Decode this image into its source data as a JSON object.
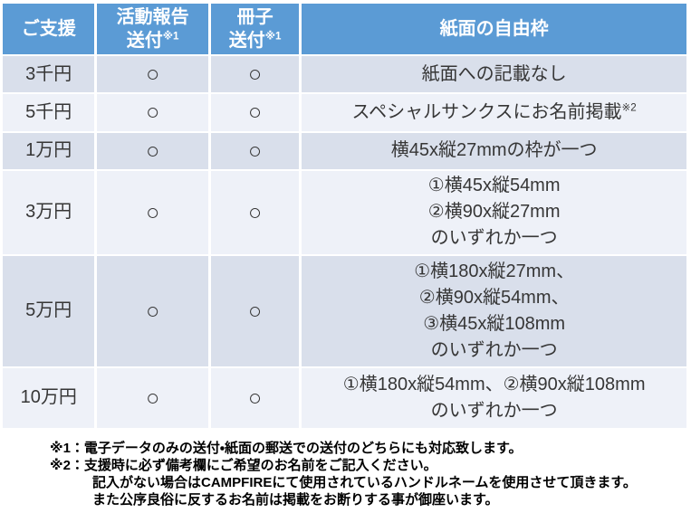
{
  "colors": {
    "header-bg": "#5B9BD5",
    "header-text": "#FFFFFF",
    "band-dark": "#D9DFEB",
    "band-light": "#EEF1F8",
    "cell-text": "#363636",
    "note-text": "#000000",
    "page-bg": "#FFFFFF"
  },
  "table": {
    "header": {
      "support": {
        "text": "ご支援"
      },
      "activity_report": {
        "text": "活動報告\n送付",
        "sup": "※1"
      },
      "booklet": {
        "text": "冊子\n送付",
        "sup": "※1"
      },
      "free_space": {
        "text": "紙面の自由枠"
      }
    },
    "rows": [
      {
        "tier": "3千円",
        "report": "○",
        "booklet": "○",
        "space": {
          "text": "紙面への記載なし"
        }
      },
      {
        "tier": "5千円",
        "report": "○",
        "booklet": "○",
        "space": {
          "text": "スペシャルサンクスにお名前掲載",
          "sup": "※2"
        }
      },
      {
        "tier": "1万円",
        "report": "○",
        "booklet": "○",
        "space": {
          "text": "横45x縦27mmの枠が一つ"
        }
      },
      {
        "tier": "3万円",
        "report": "○",
        "booklet": "○",
        "space": {
          "text": "①横45x縦54mm\n②横90x縦27mm\nのいずれか一つ"
        }
      },
      {
        "tier": "5万円",
        "report": "○",
        "booklet": "○",
        "space": {
          "text": "①横180x縦27mm、\n②横90x縦54mm、\n③横45x縦108mm\nのいずれか一つ"
        }
      },
      {
        "tier": "10万円",
        "report": "○",
        "booklet": "○",
        "space": {
          "text": "①横180x縦54mm、②横90x縦108mm\nのいずれか一つ"
        }
      }
    ]
  },
  "notes": {
    "line1": "※1：電子データのみの送付・紙面の郵送での送付のどちらにも対応致します。",
    "line2": "※2：支援時に必ず備考欄にご希望のお名前をご記入ください。",
    "line3": "記入がない場合はCAMPFIREにて使用されているハンドルネームを使用させて頂きます。",
    "line4": "また公序良俗に反するお名前は掲載をお断りする事が御座います。"
  }
}
